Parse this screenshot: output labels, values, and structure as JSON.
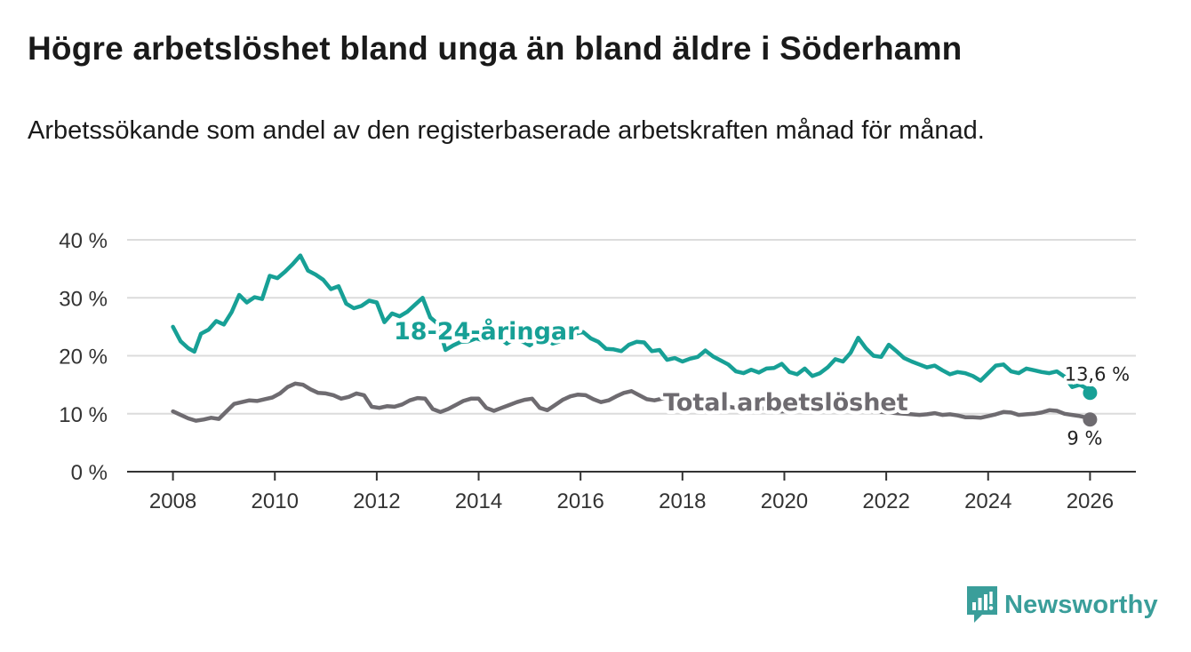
{
  "title": "Högre arbetslöshet bland unga än bland äldre i Söderhamn",
  "subtitle": "Arbetssökande som andel av den registerbaserade arbetskraften månad för månad.",
  "brand": {
    "name": "Newsworthy",
    "icon": "newsworthy-logo-icon",
    "color": "#3a9e9a"
  },
  "colors": {
    "youth": "#17a096",
    "total": "#6e6b70",
    "grid": "#dcdcdc",
    "axis": "#333333"
  },
  "chart_data": {
    "type": "line",
    "xlim": [
      2007.1,
      2026.9
    ],
    "ylim": [
      0,
      40
    ],
    "y_ticks": [
      {
        "value": 0,
        "label": "0 %"
      },
      {
        "value": 10,
        "label": "10 %"
      },
      {
        "value": 20,
        "label": "20 %"
      },
      {
        "value": 30,
        "label": "30 %"
      },
      {
        "value": 40,
        "label": "40 %"
      }
    ],
    "x_ticks": [
      {
        "value": 2008,
        "label": "2008"
      },
      {
        "value": 2010,
        "label": "2010"
      },
      {
        "value": 2012,
        "label": "2012"
      },
      {
        "value": 2014,
        "label": "2014"
      },
      {
        "value": 2016,
        "label": "2016"
      },
      {
        "value": 2018,
        "label": "2018"
      },
      {
        "value": 2020,
        "label": "2020"
      },
      {
        "value": 2022,
        "label": "2022"
      },
      {
        "value": 2024,
        "label": "2024"
      },
      {
        "value": 2026,
        "label": "2026"
      }
    ],
    "series": [
      {
        "name": "18–24-åringar",
        "label": "18-24-åringar",
        "color": "#17a096",
        "end_label": "13,6 %",
        "points": [
          [
            2008.0,
            25.0
          ],
          [
            2008.15,
            22.5
          ],
          [
            2008.3,
            21.3
          ],
          [
            2008.42,
            20.7
          ],
          [
            2008.55,
            23.8
          ],
          [
            2008.7,
            24.5
          ],
          [
            2008.85,
            26.0
          ],
          [
            2009.0,
            25.4
          ],
          [
            2009.15,
            27.5
          ],
          [
            2009.3,
            30.5
          ],
          [
            2009.45,
            29.2
          ],
          [
            2009.6,
            30.1
          ],
          [
            2009.75,
            29.8
          ],
          [
            2009.9,
            33.8
          ],
          [
            2010.05,
            33.4
          ],
          [
            2010.2,
            34.5
          ],
          [
            2010.35,
            35.8
          ],
          [
            2010.5,
            37.3
          ],
          [
            2010.65,
            34.7
          ],
          [
            2010.8,
            34.0
          ],
          [
            2010.95,
            33.1
          ],
          [
            2011.1,
            31.5
          ],
          [
            2011.25,
            32.0
          ],
          [
            2011.4,
            29.0
          ],
          [
            2011.55,
            28.2
          ],
          [
            2011.7,
            28.6
          ],
          [
            2011.85,
            29.5
          ],
          [
            2012.0,
            29.2
          ],
          [
            2012.15,
            25.8
          ],
          [
            2012.3,
            27.3
          ],
          [
            2012.45,
            26.8
          ],
          [
            2012.6,
            27.6
          ],
          [
            2012.75,
            28.8
          ],
          [
            2012.9,
            30.0
          ],
          [
            2013.05,
            26.6
          ],
          [
            2013.2,
            25.5
          ],
          [
            2013.35,
            21.0
          ],
          [
            2013.5,
            21.8
          ],
          [
            2013.65,
            22.4
          ],
          [
            2013.8,
            22.5
          ],
          [
            2013.95,
            23.0
          ],
          [
            2014.1,
            22.6
          ],
          [
            2014.25,
            22.8
          ],
          [
            2014.4,
            23.2
          ],
          [
            2014.55,
            22.1
          ],
          [
            2014.7,
            22.9
          ],
          [
            2014.85,
            22.5
          ],
          [
            2015.0,
            21.8
          ],
          [
            2015.15,
            22.8
          ],
          [
            2015.3,
            23.0
          ],
          [
            2015.45,
            22.1
          ],
          [
            2015.6,
            22.5
          ],
          [
            2015.75,
            23.2
          ],
          [
            2015.9,
            23.8
          ],
          [
            2016.05,
            24.1
          ],
          [
            2016.2,
            23.0
          ],
          [
            2016.35,
            22.4
          ],
          [
            2016.5,
            21.2
          ],
          [
            2016.65,
            21.1
          ],
          [
            2016.8,
            20.8
          ],
          [
            2016.95,
            21.9
          ],
          [
            2017.1,
            22.4
          ],
          [
            2017.25,
            22.3
          ],
          [
            2017.4,
            20.8
          ],
          [
            2017.55,
            21.0
          ],
          [
            2017.7,
            19.3
          ],
          [
            2017.85,
            19.6
          ],
          [
            2018.0,
            19.0
          ],
          [
            2018.15,
            19.5
          ],
          [
            2018.3,
            19.8
          ],
          [
            2018.45,
            20.9
          ],
          [
            2018.6,
            19.9
          ],
          [
            2018.75,
            19.2
          ],
          [
            2018.9,
            18.5
          ],
          [
            2019.05,
            17.3
          ],
          [
            2019.2,
            17.0
          ],
          [
            2019.35,
            17.6
          ],
          [
            2019.5,
            17.1
          ],
          [
            2019.65,
            17.8
          ],
          [
            2019.8,
            17.9
          ],
          [
            2019.95,
            18.6
          ],
          [
            2020.1,
            17.2
          ],
          [
            2020.25,
            16.8
          ],
          [
            2020.4,
            17.8
          ],
          [
            2020.55,
            16.5
          ],
          [
            2020.7,
            17.0
          ],
          [
            2020.85,
            18.0
          ],
          [
            2021.0,
            19.4
          ],
          [
            2021.15,
            19.0
          ],
          [
            2021.3,
            20.5
          ],
          [
            2021.45,
            23.1
          ],
          [
            2021.6,
            21.3
          ],
          [
            2021.75,
            20.0
          ],
          [
            2021.9,
            19.8
          ],
          [
            2022.05,
            21.9
          ],
          [
            2022.2,
            20.8
          ],
          [
            2022.35,
            19.6
          ],
          [
            2022.5,
            19.0
          ],
          [
            2022.65,
            18.5
          ],
          [
            2022.8,
            18.0
          ],
          [
            2022.95,
            18.3
          ],
          [
            2023.1,
            17.5
          ],
          [
            2023.25,
            16.8
          ],
          [
            2023.4,
            17.2
          ],
          [
            2023.55,
            17.0
          ],
          [
            2023.7,
            16.5
          ],
          [
            2023.85,
            15.7
          ],
          [
            2024.0,
            17.0
          ],
          [
            2024.15,
            18.3
          ],
          [
            2024.3,
            18.5
          ],
          [
            2024.45,
            17.3
          ],
          [
            2024.6,
            17.0
          ],
          [
            2024.75,
            17.8
          ],
          [
            2024.9,
            17.5
          ],
          [
            2025.05,
            17.2
          ],
          [
            2025.2,
            17.0
          ],
          [
            2025.35,
            17.3
          ],
          [
            2025.5,
            16.4
          ],
          [
            2025.65,
            14.6
          ],
          [
            2025.8,
            15.0
          ],
          [
            2025.95,
            14.3
          ],
          [
            2026.0,
            13.6
          ]
        ]
      },
      {
        "name": "Total arbetslöshet",
        "label": "Total arbetslöshet",
        "color": "#6e6b70",
        "end_label": "9 %",
        "points": [
          [
            2008.0,
            10.4
          ],
          [
            2008.15,
            9.8
          ],
          [
            2008.3,
            9.2
          ],
          [
            2008.45,
            8.8
          ],
          [
            2008.6,
            9.0
          ],
          [
            2008.75,
            9.3
          ],
          [
            2008.9,
            9.1
          ],
          [
            2009.05,
            10.4
          ],
          [
            2009.2,
            11.7
          ],
          [
            2009.35,
            12.0
          ],
          [
            2009.5,
            12.3
          ],
          [
            2009.65,
            12.2
          ],
          [
            2009.8,
            12.5
          ],
          [
            2009.95,
            12.8
          ],
          [
            2010.1,
            13.5
          ],
          [
            2010.25,
            14.6
          ],
          [
            2010.4,
            15.2
          ],
          [
            2010.55,
            15.0
          ],
          [
            2010.7,
            14.2
          ],
          [
            2010.85,
            13.6
          ],
          [
            2011.0,
            13.5
          ],
          [
            2011.15,
            13.2
          ],
          [
            2011.3,
            12.6
          ],
          [
            2011.45,
            12.9
          ],
          [
            2011.6,
            13.5
          ],
          [
            2011.75,
            13.2
          ],
          [
            2011.9,
            11.2
          ],
          [
            2012.05,
            11.0
          ],
          [
            2012.2,
            11.3
          ],
          [
            2012.35,
            11.2
          ],
          [
            2012.5,
            11.6
          ],
          [
            2012.65,
            12.3
          ],
          [
            2012.8,
            12.7
          ],
          [
            2012.95,
            12.6
          ],
          [
            2013.1,
            10.8
          ],
          [
            2013.25,
            10.3
          ],
          [
            2013.4,
            10.8
          ],
          [
            2013.55,
            11.5
          ],
          [
            2013.7,
            12.2
          ],
          [
            2013.85,
            12.6
          ],
          [
            2014.0,
            12.6
          ],
          [
            2014.15,
            11.0
          ],
          [
            2014.3,
            10.5
          ],
          [
            2014.45,
            11.0
          ],
          [
            2014.6,
            11.5
          ],
          [
            2014.75,
            12.0
          ],
          [
            2014.9,
            12.4
          ],
          [
            2015.05,
            12.6
          ],
          [
            2015.2,
            11.0
          ],
          [
            2015.35,
            10.6
          ],
          [
            2015.5,
            11.5
          ],
          [
            2015.65,
            12.4
          ],
          [
            2015.8,
            13.0
          ],
          [
            2015.95,
            13.3
          ],
          [
            2016.1,
            13.2
          ],
          [
            2016.25,
            12.5
          ],
          [
            2016.4,
            12.0
          ],
          [
            2016.55,
            12.3
          ],
          [
            2016.7,
            13.0
          ],
          [
            2016.85,
            13.6
          ],
          [
            2017.0,
            13.9
          ],
          [
            2017.15,
            13.2
          ],
          [
            2017.3,
            12.5
          ],
          [
            2017.45,
            12.3
          ],
          [
            2017.6,
            12.6
          ],
          [
            2017.75,
            13.0
          ],
          [
            2017.9,
            13.3
          ],
          [
            2018.0,
            12.8
          ],
          [
            2018.15,
            11.6
          ],
          [
            2018.3,
            11.2
          ],
          [
            2018.45,
            11.0
          ],
          [
            2018.6,
            11.3
          ],
          [
            2018.75,
            11.5
          ],
          [
            2018.9,
            11.2
          ],
          [
            2019.05,
            11.0
          ],
          [
            2019.2,
            11.2
          ],
          [
            2019.35,
            11.3
          ],
          [
            2019.5,
            11.0
          ],
          [
            2019.65,
            10.8
          ],
          [
            2019.8,
            10.6
          ],
          [
            2019.95,
            10.4
          ],
          [
            2020.1,
            10.5
          ],
          [
            2020.25,
            10.8
          ],
          [
            2020.4,
            11.2
          ],
          [
            2020.55,
            11.5
          ],
          [
            2020.7,
            11.2
          ],
          [
            2020.85,
            11.0
          ],
          [
            2021.0,
            10.8
          ],
          [
            2021.15,
            10.8
          ],
          [
            2021.3,
            10.6
          ],
          [
            2021.45,
            10.8
          ],
          [
            2021.6,
            10.6
          ],
          [
            2021.75,
            10.4
          ],
          [
            2021.9,
            10.3
          ],
          [
            2022.05,
            10.2
          ],
          [
            2022.2,
            10.1
          ],
          [
            2022.35,
            10.0
          ],
          [
            2022.5,
            9.9
          ],
          [
            2022.65,
            9.8
          ],
          [
            2022.8,
            9.9
          ],
          [
            2022.95,
            10.1
          ],
          [
            2023.1,
            9.8
          ],
          [
            2023.25,
            9.9
          ],
          [
            2023.4,
            9.7
          ],
          [
            2023.55,
            9.4
          ],
          [
            2023.7,
            9.4
          ],
          [
            2023.85,
            9.3
          ],
          [
            2024.0,
            9.6
          ],
          [
            2024.15,
            9.9
          ],
          [
            2024.3,
            10.3
          ],
          [
            2024.45,
            10.2
          ],
          [
            2024.6,
            9.8
          ],
          [
            2024.75,
            9.9
          ],
          [
            2024.9,
            10.0
          ],
          [
            2025.05,
            10.2
          ],
          [
            2025.2,
            10.6
          ],
          [
            2025.35,
            10.5
          ],
          [
            2025.5,
            10.0
          ],
          [
            2025.65,
            9.8
          ],
          [
            2025.8,
            9.6
          ],
          [
            2025.95,
            9.3
          ],
          [
            2026.0,
            9.0
          ]
        ]
      }
    ]
  }
}
